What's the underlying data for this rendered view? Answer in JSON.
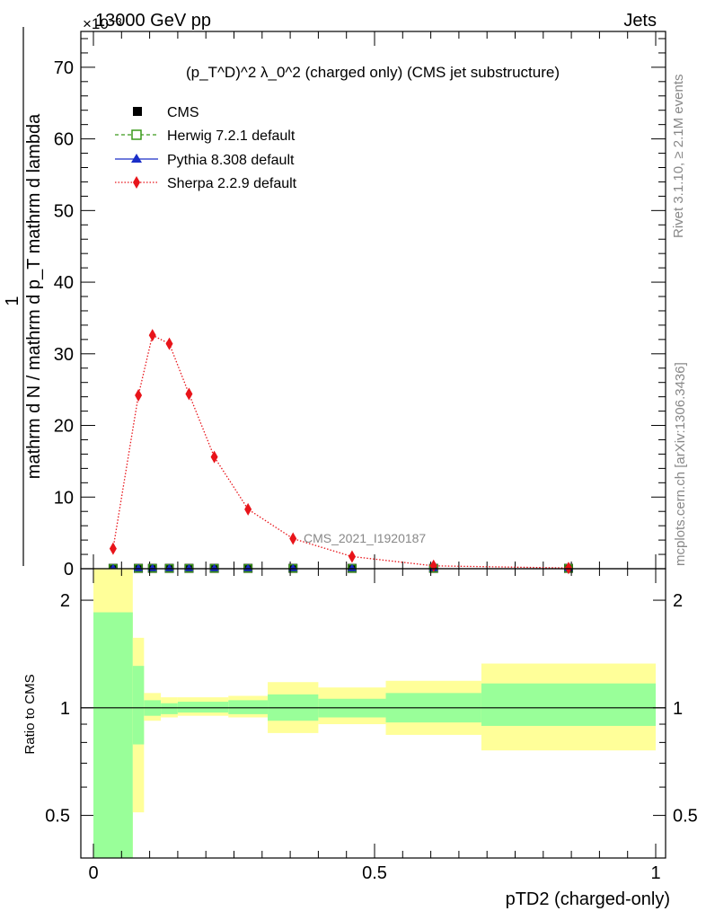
{
  "header": {
    "left": "13000 GeV pp",
    "right": "Jets",
    "exponent": "×10⁻³"
  },
  "side_labels": {
    "rivet": "Rivet 3.1.10, ≥ 2.1M events",
    "mcplots": "mcplots.cern.ch [arXiv:1306.3436]"
  },
  "chart_data": [
    {
      "type": "line",
      "panel": "main",
      "title": "(p_T^D)^2 λ_0^2 (charged only) (CMS jet substructure)",
      "ylabel_numerator": "1",
      "ylabel_denominator": "mathrm d N / mathrm d p_T mathrm d N",
      "ylabel_full": "mathrm d N / mathrm d p_T mathrm d lambda",
      "ylim": [
        0,
        75
      ],
      "xlim": [
        -0.02,
        1.02
      ],
      "yticks": [
        "0",
        "10",
        "20",
        "30",
        "40",
        "50",
        "60",
        "70"
      ],
      "watermark": "CMS_2021_I1920187",
      "legend": [
        "CMS",
        "Herwig 7.2.1 default",
        "Pythia 8.308 default",
        "Sherpa 2.2.9 default"
      ],
      "legend_position": "top-left",
      "x": [
        0.035,
        0.08,
        0.105,
        0.135,
        0.17,
        0.215,
        0.275,
        0.355,
        0.46,
        0.605,
        0.845
      ],
      "series": [
        {
          "name": "CMS",
          "marker": "square",
          "color": "#000000",
          "values": [
            0.05,
            0.05,
            0.05,
            0.05,
            0.05,
            0.05,
            0.05,
            0.05,
            0.05,
            0.05,
            0.05
          ]
        },
        {
          "name": "Herwig 7.2.1 default",
          "marker": "open-square",
          "color": "#3a9a1a",
          "values": [
            0.05,
            0.05,
            0.05,
            0.05,
            0.05,
            0.05,
            0.05,
            0.05,
            0.05,
            0.05,
            0.05
          ]
        },
        {
          "name": "Pythia 8.308 default",
          "marker": "triangle",
          "color": "#1a2ec8",
          "values": [
            0.05,
            0.05,
            0.05,
            0.05,
            0.05,
            0.05,
            0.05,
            0.05,
            0.05,
            0.05,
            0.05
          ]
        },
        {
          "name": "Sherpa 2.2.9 default",
          "marker": "diamond",
          "color": "#e8141a",
          "values": [
            2.8,
            24.2,
            32.6,
            31.4,
            24.4,
            15.6,
            8.3,
            4.2,
            1.7,
            0.4,
            0.1
          ]
        }
      ]
    },
    {
      "type": "area",
      "panel": "ratio",
      "ylabel": "Ratio to CMS",
      "xlabel": "pTD2 (charged-only)",
      "ylim": [
        0.38,
        2.45
      ],
      "yticks": [
        "0.5",
        "1",
        "2"
      ],
      "xticks": [
        "0",
        "0.5",
        "1"
      ],
      "bins": [
        {
          "x": [
            0.0,
            0.07
          ],
          "inner": [
            0.0,
            1.85
          ],
          "outer": [
            0.0,
            2.6
          ]
        },
        {
          "x": [
            0.07,
            0.09
          ],
          "inner": [
            0.79,
            1.31
          ],
          "outer": [
            0.51,
            1.57
          ]
        },
        {
          "x": [
            0.09,
            0.12
          ],
          "inner": [
            0.95,
            1.05
          ],
          "outer": [
            0.92,
            1.1
          ]
        },
        {
          "x": [
            0.12,
            0.15
          ],
          "inner": [
            0.96,
            1.03
          ],
          "outer": [
            0.94,
            1.07
          ]
        },
        {
          "x": [
            0.15,
            0.24
          ],
          "inner": [
            0.97,
            1.04
          ],
          "outer": [
            0.95,
            1.07
          ]
        },
        {
          "x": [
            0.24,
            0.31
          ],
          "inner": [
            0.96,
            1.05
          ],
          "outer": [
            0.94,
            1.08
          ]
        },
        {
          "x": [
            0.31,
            0.4
          ],
          "inner": [
            0.92,
            1.09
          ],
          "outer": [
            0.85,
            1.18
          ]
        },
        {
          "x": [
            0.4,
            0.52
          ],
          "inner": [
            0.94,
            1.06
          ],
          "outer": [
            0.9,
            1.14
          ]
        },
        {
          "x": [
            0.52,
            0.69
          ],
          "inner": [
            0.91,
            1.1
          ],
          "outer": [
            0.84,
            1.19
          ]
        },
        {
          "x": [
            0.69,
            1.0
          ],
          "inner": [
            0.89,
            1.17
          ],
          "outer": [
            0.76,
            1.33
          ]
        }
      ],
      "inner_color": "#99ff99",
      "outer_color": "#ffff99"
    }
  ]
}
